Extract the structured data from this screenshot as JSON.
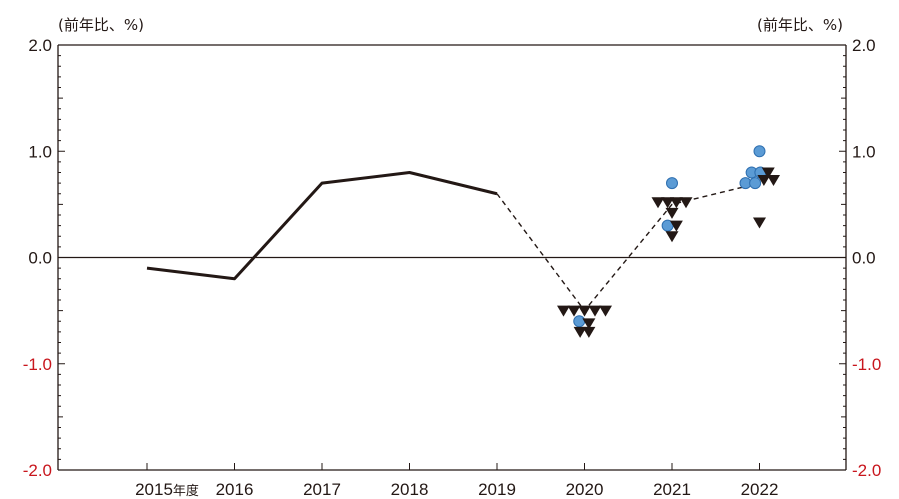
{
  "chart_data": {
    "type": "line",
    "unit_label_left": "(前年比、%)",
    "unit_label_right": "(前年比、%)",
    "ylim": [
      -2.0,
      2.0
    ],
    "y_ticks": [
      {
        "value": 2.0,
        "label": "2.0"
      },
      {
        "value": 1.0,
        "label": "1.0"
      },
      {
        "value": 0.0,
        "label": "0.0"
      },
      {
        "value": -1.0,
        "label": "-1.0"
      },
      {
        "value": -2.0,
        "label": "-2.0"
      }
    ],
    "categories": [
      "2015",
      "2016",
      "2017",
      "2018",
      "2019",
      "2020",
      "2021",
      "2022"
    ],
    "first_category_suffix": "年度",
    "grid": false,
    "zero_line": true,
    "colors": {
      "axis": "#231815",
      "negative_label": "#c8161d",
      "line": "#231815",
      "circle_fill": "#5b9bd5",
      "circle_stroke": "#2e6fb0",
      "triangle": "#231815"
    },
    "series": [
      {
        "style": "solid",
        "x": [
          "2015",
          "2016",
          "2017",
          "2018",
          "2019"
        ],
        "y": [
          -0.1,
          -0.2,
          0.7,
          0.8,
          0.6
        ]
      },
      {
        "style": "dashed",
        "x": [
          "2019",
          "2020",
          "2021",
          "2022"
        ],
        "y": [
          0.6,
          -0.5,
          0.5,
          0.7
        ]
      }
    ],
    "circles": [
      {
        "x": "2020",
        "offset": -0.06,
        "y": -0.6
      },
      {
        "x": "2021",
        "offset": -0.05,
        "y": 0.3
      },
      {
        "x": "2021",
        "offset": 0.0,
        "y": 0.7
      },
      {
        "x": "2022",
        "offset": -0.16,
        "y": 0.7
      },
      {
        "x": "2022",
        "offset": -0.05,
        "y": 0.7
      },
      {
        "x": "2022",
        "offset": -0.09,
        "y": 0.8
      },
      {
        "x": "2022",
        "offset": 0.01,
        "y": 0.8
      },
      {
        "x": "2022",
        "offset": 0.0,
        "y": 1.0
      }
    ],
    "triangles": [
      {
        "x": "2020",
        "offset": -0.24,
        "y": -0.5
      },
      {
        "x": "2020",
        "offset": -0.12,
        "y": -0.5
      },
      {
        "x": "2020",
        "offset": 0.0,
        "y": -0.5
      },
      {
        "x": "2020",
        "offset": 0.12,
        "y": -0.5
      },
      {
        "x": "2020",
        "offset": 0.24,
        "y": -0.5
      },
      {
        "x": "2020",
        "offset": 0.05,
        "y": -0.62
      },
      {
        "x": "2020",
        "offset": -0.05,
        "y": -0.7
      },
      {
        "x": "2020",
        "offset": 0.05,
        "y": -0.7
      },
      {
        "x": "2021",
        "offset": -0.16,
        "y": 0.52
      },
      {
        "x": "2021",
        "offset": -0.05,
        "y": 0.52
      },
      {
        "x": "2021",
        "offset": 0.05,
        "y": 0.52
      },
      {
        "x": "2021",
        "offset": 0.16,
        "y": 0.52
      },
      {
        "x": "2021",
        "offset": 0.0,
        "y": 0.42
      },
      {
        "x": "2021",
        "offset": 0.05,
        "y": 0.3
      },
      {
        "x": "2021",
        "offset": 0.0,
        "y": 0.2
      },
      {
        "x": "2022",
        "offset": 0.1,
        "y": 0.8
      },
      {
        "x": "2022",
        "offset": 0.05,
        "y": 0.73
      },
      {
        "x": "2022",
        "offset": 0.16,
        "y": 0.73
      },
      {
        "x": "2022",
        "offset": 0.0,
        "y": 0.33
      }
    ]
  }
}
